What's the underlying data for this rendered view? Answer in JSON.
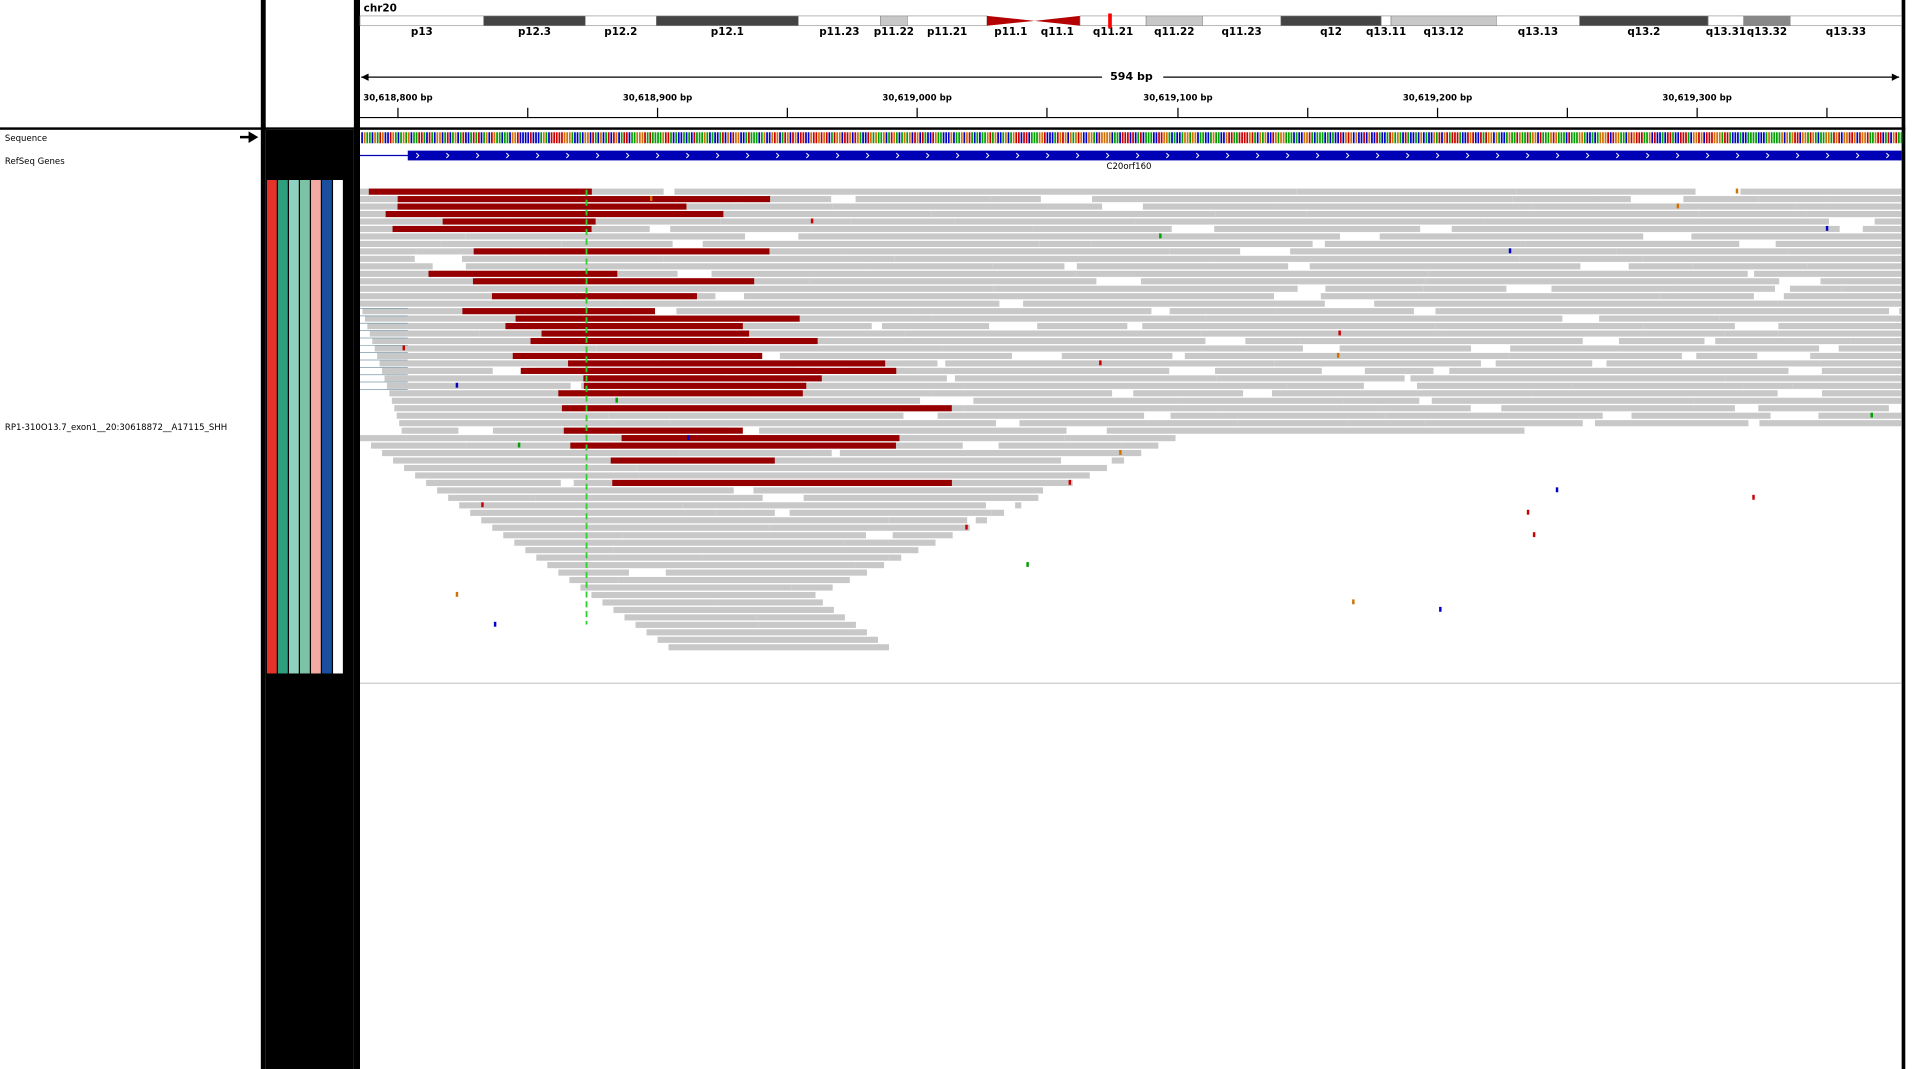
{
  "header": {
    "chromosome": "chr20",
    "bands": [
      "p13",
      "p12.3",
      "p12.2",
      "p12.1",
      "p11.23",
      "p11.22",
      "p11.21",
      "p11.1",
      "q11.1",
      "q11.21",
      "q11.22",
      "q11.23",
      "q12",
      "q13.11",
      "q13.12",
      "q13.13",
      "q13.2",
      "q13.31",
      "q13.32",
      "q13.33"
    ],
    "span": "594 bp",
    "ruler": [
      "30,618,800 bp",
      "30,618,900 bp",
      "30,619,000 bp",
      "30,619,100 bp",
      "30,619,200 bp",
      "30,619,300 bp"
    ]
  },
  "tracks": {
    "sequence": "Sequence",
    "refseq": "RefSeq Genes",
    "gene": "C20orf160",
    "alignment": "RP1-310O13.7_exon1__20:30618872__A17115_SHH"
  }
}
